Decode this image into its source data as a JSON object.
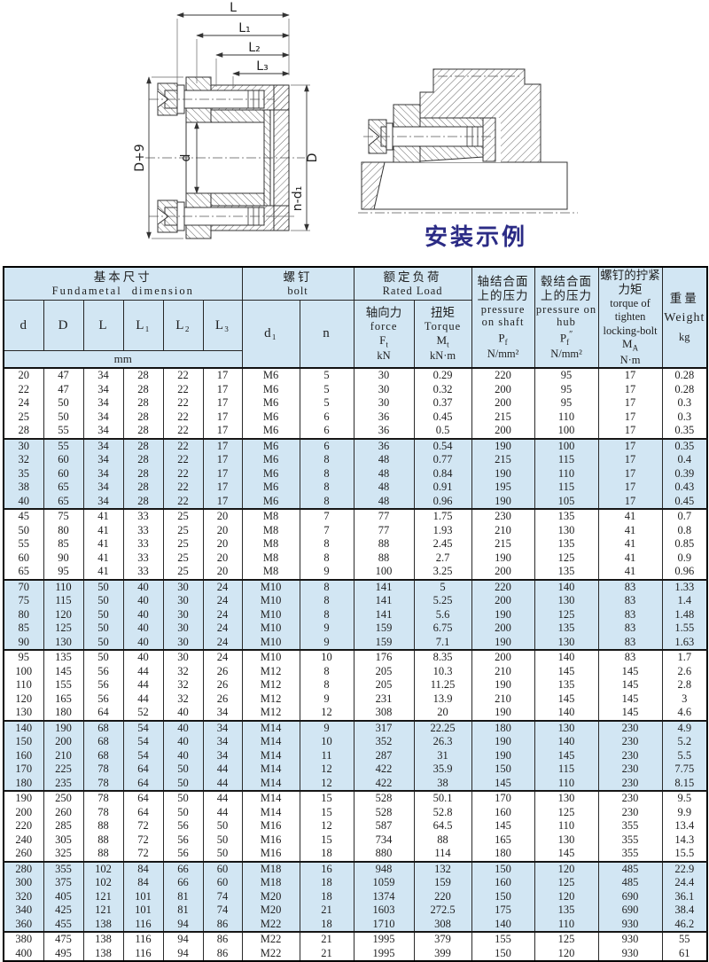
{
  "drawings": {
    "left": {
      "L": "L",
      "L1": "L₁",
      "L2": "L₂",
      "L3": "L₃",
      "D9": "D+9",
      "d": "d",
      "D": "D",
      "nd1": "n-d₁"
    },
    "right": {
      "caption": "安装示例"
    }
  },
  "table": {
    "header": {
      "basic": {
        "cn": "基本尺寸",
        "en": "Fundametal dimension",
        "unit": "mm",
        "cols": [
          "d",
          "D",
          "L",
          "L₁",
          "L₂",
          "L₃"
        ]
      },
      "bolt": {
        "cn": "螺钉",
        "en": "bolt",
        "d1": "d₁",
        "n": "n"
      },
      "rated": {
        "cn": "额定负荷",
        "en": "Rated Load",
        "force": {
          "cn": "轴向力",
          "en": "force",
          "sym": "F",
          "sub": "t",
          "unit": "kN"
        },
        "torque": {
          "cn": "扭矩",
          "en": "Torque",
          "sym": "M",
          "sub": "t",
          "unit": "kN·m"
        }
      },
      "pressure_shaft": {
        "cn": "轴结合面上的压力",
        "en": "pressure on shaft",
        "sym": "P",
        "sub": "f",
        "suffix": "",
        "unit": "N/mm²"
      },
      "pressure_hub": {
        "cn": "毂结合面上的压力",
        "en": "pressure on hub",
        "sym": "P",
        "sub": "f",
        "suffix": "″",
        "unit": "N/mm²"
      },
      "bolt_torque": {
        "cn": "螺钉的拧紧力矩",
        "en1": "torque of",
        "en2": "tighten",
        "en3": "locking-bolt",
        "sym": "M",
        "sub": "A",
        "unit": "N·m"
      },
      "weight": {
        "cn": "重量",
        "en": "Weight",
        "unit": "kg"
      }
    },
    "rows": [
      [
        "20",
        "47",
        "34",
        "28",
        "22",
        "17",
        "M6",
        "5",
        "30",
        "0.29",
        "220",
        "95",
        "17",
        "0.28"
      ],
      [
        "22",
        "47",
        "34",
        "28",
        "22",
        "17",
        "M6",
        "5",
        "30",
        "0.32",
        "200",
        "95",
        "17",
        "0.28"
      ],
      [
        "24",
        "50",
        "34",
        "28",
        "22",
        "17",
        "M6",
        "5",
        "30",
        "0.37",
        "200",
        "95",
        "17",
        "0.3"
      ],
      [
        "25",
        "50",
        "34",
        "28",
        "22",
        "17",
        "M6",
        "6",
        "36",
        "0.45",
        "215",
        "110",
        "17",
        "0.3"
      ],
      [
        "28",
        "55",
        "34",
        "28",
        "22",
        "17",
        "M6",
        "6",
        "36",
        "0.5",
        "200",
        "100",
        "17",
        "0.35"
      ],
      [
        "30",
        "55",
        "34",
        "28",
        "22",
        "17",
        "M6",
        "6",
        "36",
        "0.54",
        "190",
        "100",
        "17",
        "0.35"
      ],
      [
        "32",
        "60",
        "34",
        "28",
        "22",
        "17",
        "M6",
        "8",
        "48",
        "0.77",
        "215",
        "115",
        "17",
        "0.4"
      ],
      [
        "35",
        "60",
        "34",
        "28",
        "22",
        "17",
        "M6",
        "8",
        "48",
        "0.84",
        "190",
        "110",
        "17",
        "0.39"
      ],
      [
        "38",
        "65",
        "34",
        "28",
        "22",
        "17",
        "M6",
        "8",
        "48",
        "0.91",
        "195",
        "115",
        "17",
        "0.43"
      ],
      [
        "40",
        "65",
        "34",
        "28",
        "22",
        "17",
        "M6",
        "8",
        "48",
        "0.96",
        "190",
        "105",
        "17",
        "0.45"
      ],
      [
        "45",
        "75",
        "41",
        "33",
        "25",
        "20",
        "M8",
        "7",
        "77",
        "1.75",
        "230",
        "135",
        "41",
        "0.7"
      ],
      [
        "50",
        "80",
        "41",
        "33",
        "25",
        "20",
        "M8",
        "7",
        "77",
        "1.93",
        "210",
        "130",
        "41",
        "0.8"
      ],
      [
        "55",
        "85",
        "41",
        "33",
        "25",
        "20",
        "M8",
        "8",
        "88",
        "2.45",
        "215",
        "135",
        "41",
        "0.85"
      ],
      [
        "60",
        "90",
        "41",
        "33",
        "25",
        "20",
        "M8",
        "8",
        "88",
        "2.7",
        "190",
        "125",
        "41",
        "0.9"
      ],
      [
        "65",
        "95",
        "41",
        "33",
        "25",
        "20",
        "M8",
        "9",
        "100",
        "3.25",
        "200",
        "135",
        "41",
        "0.96"
      ],
      [
        "70",
        "110",
        "50",
        "40",
        "30",
        "24",
        "M10",
        "8",
        "141",
        "5",
        "220",
        "140",
        "83",
        "1.33"
      ],
      [
        "75",
        "115",
        "50",
        "40",
        "30",
        "24",
        "M10",
        "8",
        "141",
        "5.25",
        "200",
        "130",
        "83",
        "1.4"
      ],
      [
        "80",
        "120",
        "50",
        "40",
        "30",
        "24",
        "M10",
        "8",
        "141",
        "5.6",
        "190",
        "125",
        "83",
        "1.48"
      ],
      [
        "85",
        "125",
        "50",
        "40",
        "30",
        "24",
        "M10",
        "9",
        "159",
        "6.75",
        "200",
        "135",
        "83",
        "1.55"
      ],
      [
        "90",
        "130",
        "50",
        "40",
        "30",
        "24",
        "M10",
        "9",
        "159",
        "7.1",
        "190",
        "130",
        "83",
        "1.63"
      ],
      [
        "95",
        "135",
        "50",
        "40",
        "30",
        "24",
        "M10",
        "10",
        "176",
        "8.35",
        "200",
        "140",
        "83",
        "1.7"
      ],
      [
        "100",
        "145",
        "56",
        "44",
        "32",
        "26",
        "M12",
        "8",
        "205",
        "10.3",
        "210",
        "145",
        "145",
        "2.6"
      ],
      [
        "110",
        "155",
        "56",
        "44",
        "32",
        "26",
        "M12",
        "8",
        "205",
        "11.25",
        "190",
        "135",
        "145",
        "2.8"
      ],
      [
        "120",
        "165",
        "56",
        "44",
        "32",
        "26",
        "M12",
        "9",
        "231",
        "13.9",
        "210",
        "145",
        "145",
        "3"
      ],
      [
        "130",
        "180",
        "64",
        "52",
        "40",
        "34",
        "M12",
        "12",
        "308",
        "20",
        "190",
        "140",
        "145",
        "4.6"
      ],
      [
        "140",
        "190",
        "68",
        "54",
        "40",
        "34",
        "M14",
        "9",
        "317",
        "22.25",
        "180",
        "130",
        "230",
        "4.9"
      ],
      [
        "150",
        "200",
        "68",
        "54",
        "40",
        "34",
        "M14",
        "10",
        "352",
        "26.3",
        "190",
        "140",
        "230",
        "5.2"
      ],
      [
        "160",
        "210",
        "68",
        "54",
        "40",
        "34",
        "M14",
        "11",
        "287",
        "31",
        "190",
        "145",
        "230",
        "5.5"
      ],
      [
        "170",
        "225",
        "78",
        "64",
        "50",
        "44",
        "M14",
        "12",
        "422",
        "35.9",
        "150",
        "115",
        "230",
        "7.75"
      ],
      [
        "180",
        "235",
        "78",
        "64",
        "50",
        "44",
        "M14",
        "12",
        "422",
        "38",
        "145",
        "110",
        "230",
        "8.15"
      ],
      [
        "190",
        "250",
        "78",
        "64",
        "50",
        "44",
        "M14",
        "15",
        "528",
        "50.1",
        "170",
        "130",
        "230",
        "9.5"
      ],
      [
        "200",
        "260",
        "78",
        "64",
        "50",
        "44",
        "M14",
        "15",
        "528",
        "52.8",
        "160",
        "125",
        "230",
        "9.9"
      ],
      [
        "220",
        "285",
        "88",
        "72",
        "56",
        "50",
        "M16",
        "12",
        "587",
        "64.5",
        "145",
        "110",
        "355",
        "13.4"
      ],
      [
        "240",
        "305",
        "88",
        "72",
        "56",
        "50",
        "M16",
        "15",
        "734",
        "88",
        "165",
        "130",
        "355",
        "14.3"
      ],
      [
        "260",
        "325",
        "88",
        "72",
        "56",
        "50",
        "M16",
        "18",
        "880",
        "114",
        "180",
        "145",
        "355",
        "15.5"
      ],
      [
        "280",
        "355",
        "102",
        "84",
        "66",
        "60",
        "M18",
        "16",
        "948",
        "132",
        "150",
        "120",
        "485",
        "22.9"
      ],
      [
        "300",
        "375",
        "102",
        "84",
        "66",
        "60",
        "M18",
        "18",
        "1059",
        "159",
        "160",
        "125",
        "485",
        "24.4"
      ],
      [
        "320",
        "405",
        "121",
        "101",
        "81",
        "74",
        "M20",
        "18",
        "1374",
        "220",
        "150",
        "120",
        "690",
        "36.1"
      ],
      [
        "340",
        "425",
        "121",
        "101",
        "81",
        "74",
        "M20",
        "21",
        "1603",
        "272.5",
        "175",
        "135",
        "690",
        "38.4"
      ],
      [
        "360",
        "455",
        "138",
        "116",
        "94",
        "86",
        "M22",
        "18",
        "1710",
        "308",
        "140",
        "110",
        "930",
        "46.2"
      ],
      [
        "380",
        "475",
        "138",
        "116",
        "94",
        "86",
        "M22",
        "21",
        "1995",
        "379",
        "155",
        "125",
        "930",
        "55"
      ],
      [
        "400",
        "495",
        "138",
        "116",
        "94",
        "86",
        "M22",
        "21",
        "1995",
        "399",
        "150",
        "120",
        "930",
        "61"
      ]
    ]
  }
}
